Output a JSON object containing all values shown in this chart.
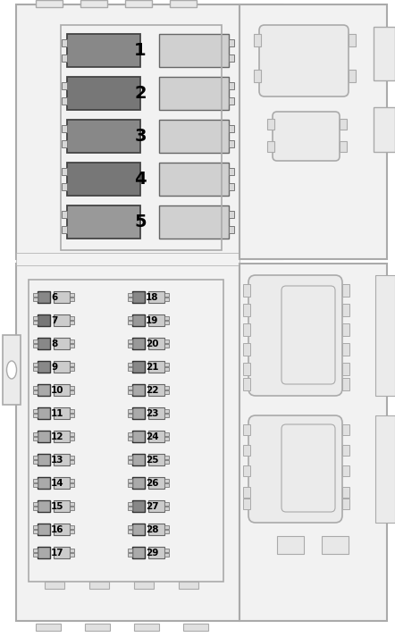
{
  "fig_width": 4.42,
  "fig_height": 7.13,
  "dpi": 100,
  "bg": "#ffffff",
  "panel_fill": "#f0f0f0",
  "panel_edge": "#aaaaaa",
  "relay_dark_colors": [
    "#888888",
    "#777777",
    "#888888",
    "#777777",
    "#999999"
  ],
  "relay_light_color": "#d0d0d0",
  "relay_nums": [
    1,
    2,
    3,
    4,
    5
  ],
  "small_left_dark": [
    "#888888",
    "#777777",
    "#888888",
    "#888888",
    "#aaaaaa",
    "#aaaaaa",
    "#aaaaaa",
    "#aaaaaa",
    "#aaaaaa",
    "#aaaaaa",
    "#aaaaaa",
    "#aaaaaa"
  ],
  "small_right_dark": [
    "#888888",
    "#999999",
    "#999999",
    "#888888",
    "#aaaaaa",
    "#aaaaaa",
    "#aaaaaa",
    "#aaaaaa",
    "#aaaaaa",
    "#888888",
    "#aaaaaa",
    "#aaaaaa"
  ],
  "small_light": "#cccccc",
  "bottom_nums_left": [
    6,
    7,
    8,
    9,
    10,
    11,
    12,
    13,
    14,
    15,
    16,
    17
  ],
  "bottom_nums_right": [
    18,
    19,
    20,
    21,
    22,
    23,
    24,
    25,
    26,
    27,
    28,
    29
  ]
}
